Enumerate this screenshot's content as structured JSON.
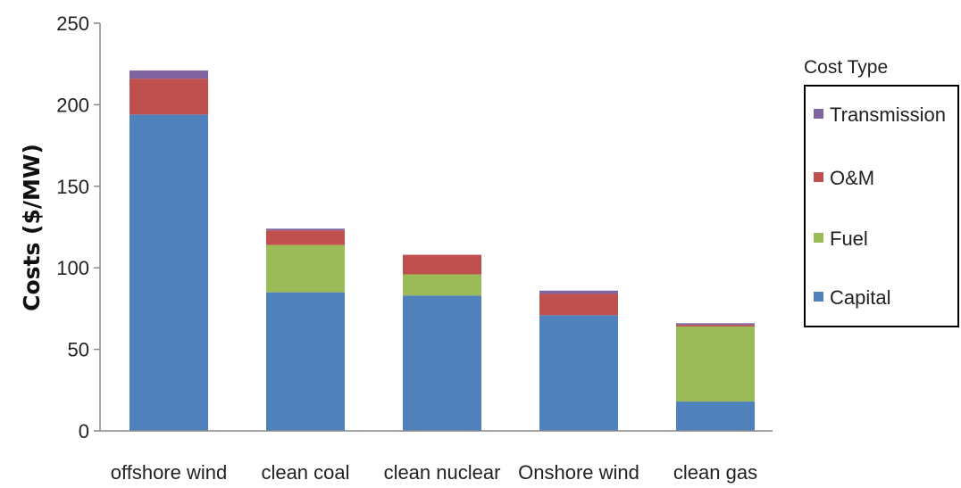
{
  "chart_data": {
    "type": "bar",
    "stacked": true,
    "title": "",
    "xlabel": "",
    "ylabel": "Costs ($/MW)",
    "ylim": [
      0,
      250
    ],
    "yticks": [
      0,
      50,
      100,
      150,
      200,
      250
    ],
    "grid": false,
    "categories": [
      "offshore wind",
      "clean coal",
      "clean nuclear",
      "Onshore wind",
      "clean gas"
    ],
    "series": [
      {
        "name": "Capital",
        "color": "#4f81bd",
        "values": [
          194,
          85,
          83,
          71,
          18
        ]
      },
      {
        "name": "Fuel",
        "color": "#9bbb59",
        "values": [
          0,
          29,
          13,
          0,
          46
        ]
      },
      {
        "name": "O&M",
        "color": "#c0504d",
        "values": [
          22,
          9,
          12,
          13,
          1
        ]
      },
      {
        "name": "Transmission",
        "color": "#8064a2",
        "values": [
          5,
          1,
          0,
          2,
          1
        ]
      }
    ],
    "legend": {
      "title": "Cost Type",
      "placement": "right",
      "order": [
        "Transmission",
        "O&M",
        "Fuel",
        "Capital"
      ]
    }
  }
}
